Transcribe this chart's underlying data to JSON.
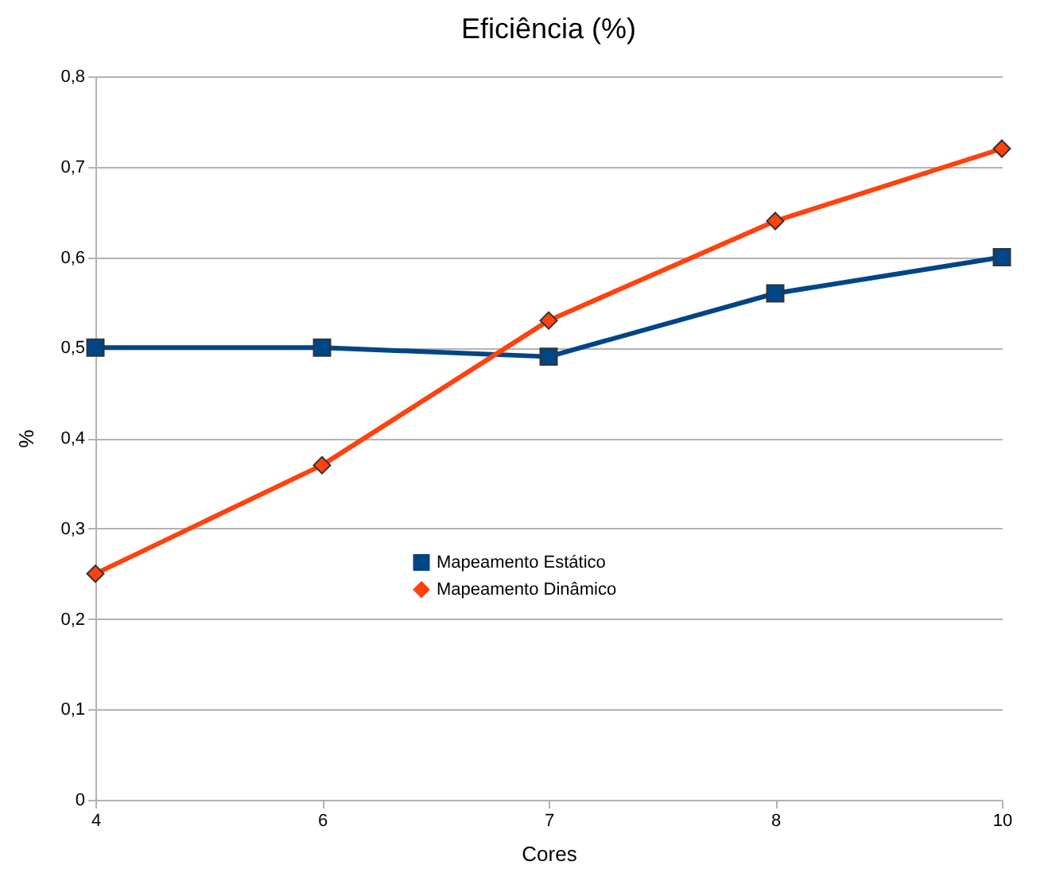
{
  "chart_data": {
    "type": "line",
    "title": "Eficiência (%)",
    "xlabel": "Cores",
    "ylabel": "%",
    "categories": [
      "4",
      "6",
      "7",
      "8",
      "10"
    ],
    "series": [
      {
        "name": "Mapeamento Estático",
        "color": "#004586",
        "marker": "square",
        "values": [
          0.5,
          0.5,
          0.49,
          0.56,
          0.6
        ]
      },
      {
        "name": "Mapeamento Dinâmico",
        "color": "#ff420e",
        "marker": "diamond",
        "values": [
          0.25,
          0.37,
          0.53,
          0.64,
          0.72
        ]
      }
    ],
    "ylim": [
      0,
      0.8
    ],
    "yticks": [
      0,
      {
        "value": 0.1,
        "label": "0,1"
      },
      {
        "value": 0.2,
        "label": "0,2"
      },
      {
        "value": 0.3,
        "label": "0,3"
      },
      {
        "value": 0.4,
        "label": "0,4"
      },
      {
        "value": 0.5,
        "label": "0,5"
      },
      {
        "value": 0.6,
        "label": "0,6"
      },
      {
        "value": 0.7,
        "label": "0,7"
      },
      {
        "value": 0.8,
        "label": "0,8"
      }
    ],
    "grid": "y",
    "legend": "bottom",
    "line_style": "solid"
  }
}
